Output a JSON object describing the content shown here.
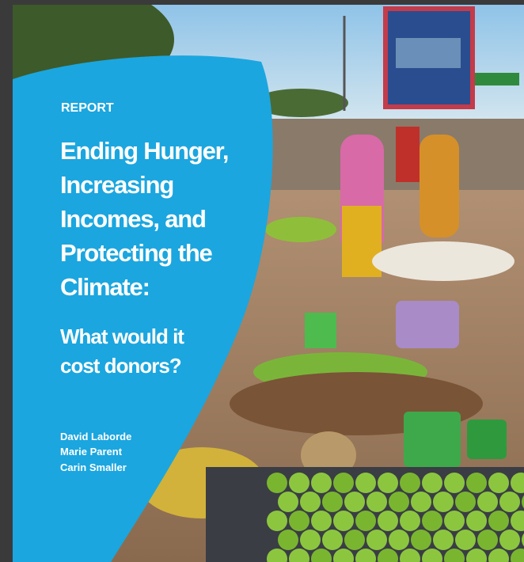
{
  "cover": {
    "label": "REPORT",
    "title": [
      "Ending Hunger,",
      "Increasing",
      "Incomes, and",
      "Protecting the",
      "Climate:"
    ],
    "subtitle": [
      "What would it",
      "cost donors?"
    ],
    "authors": [
      "David Laborde",
      "Marie Parent",
      "Carin Smaller"
    ]
  }
}
